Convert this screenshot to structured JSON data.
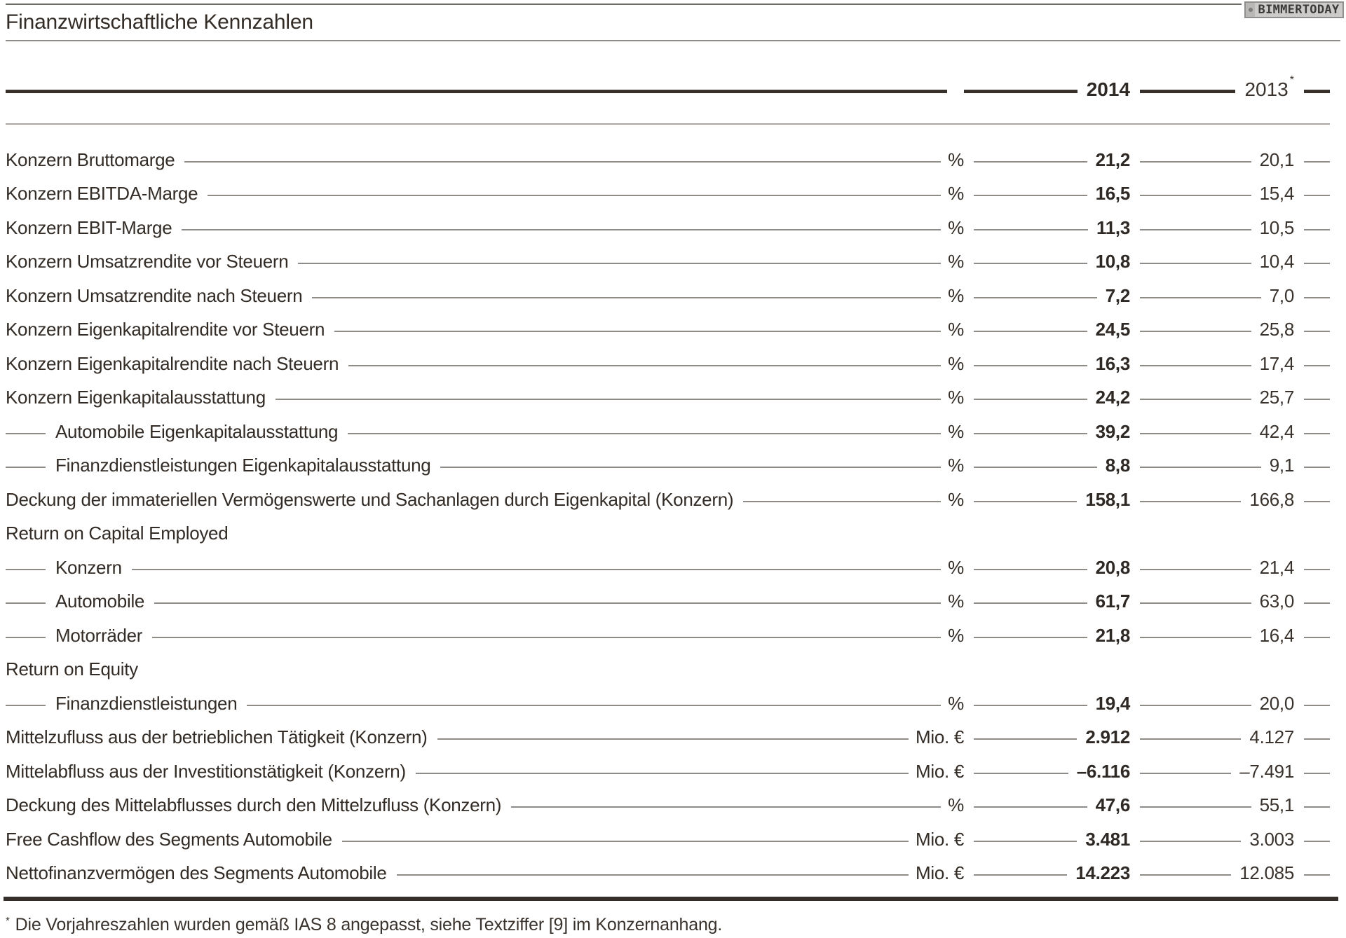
{
  "page": {
    "title": "Finanzwirtschaftliche Kennzahlen",
    "watermark": "BIMMERTODAY"
  },
  "columns": {
    "y2014": "2014",
    "y2013": "2013",
    "y2013_note": "*"
  },
  "table": {
    "rows": [
      {
        "label": "Konzern Bruttomarge",
        "unit": "%",
        "y2014": "21,2",
        "y2013": "20,1"
      },
      {
        "label": "Konzern EBITDA-Marge",
        "unit": "%",
        "y2014": "16,5",
        "y2013": "15,4"
      },
      {
        "label": "Konzern EBIT-Marge",
        "unit": "%",
        "y2014": "11,3",
        "y2013": "10,5"
      },
      {
        "label": "Konzern Umsatzrendite vor Steuern",
        "unit": "%",
        "y2014": "10,8",
        "y2013": "10,4"
      },
      {
        "label": "Konzern Umsatzrendite nach Steuern",
        "unit": "%",
        "y2014": "7,2",
        "y2013": "7,0"
      },
      {
        "label": "Konzern Eigenkapitalrendite vor Steuern",
        "unit": "%",
        "y2014": "24,5",
        "y2013": "25,8"
      },
      {
        "label": "Konzern Eigenkapitalrendite nach Steuern",
        "unit": "%",
        "y2014": "16,3",
        "y2013": "17,4"
      },
      {
        "label": "Konzern Eigenkapitalausstattung",
        "unit": "%",
        "y2014": "24,2",
        "y2013": "25,7"
      },
      {
        "label": "Automobile Eigenkapitalausstattung",
        "unit": "%",
        "y2014": "39,2",
        "y2013": "42,4",
        "indent": true
      },
      {
        "label": "Finanzdienstleistungen Eigenkapitalausstattung",
        "unit": "%",
        "y2014": "8,8",
        "y2013": "9,1",
        "indent": true
      },
      {
        "label": "Deckung der immateriellen Vermögenswerte und Sachanlagen durch Eigenkapital (Konzern)",
        "unit": "%",
        "y2014": "158,1",
        "y2013": "166,8"
      },
      {
        "label": "Return on Capital Employed",
        "section": true
      },
      {
        "label": "Konzern",
        "unit": "%",
        "y2014": "20,8",
        "y2013": "21,4",
        "indent": true
      },
      {
        "label": "Automobile",
        "unit": "%",
        "y2014": "61,7",
        "y2013": "63,0",
        "indent": true
      },
      {
        "label": "Motorräder",
        "unit": "%",
        "y2014": "21,8",
        "y2013": "16,4",
        "indent": true
      },
      {
        "label": "Return on Equity",
        "section": true
      },
      {
        "label": "Finanzdienstleistungen",
        "unit": "%",
        "y2014": "19,4",
        "y2013": "20,0",
        "indent": true
      },
      {
        "label": "Mittelzufluss aus der betrieblichen Tätigkeit (Konzern)",
        "unit": "Mio. €",
        "y2014": "2.912",
        "y2013": "4.127"
      },
      {
        "label": "Mittelabfluss aus der Investitionstätigkeit (Konzern)",
        "unit": "Mio. €",
        "y2014": "–6.116",
        "y2013": "–7.491"
      },
      {
        "label": "Deckung des Mittelabflusses durch den Mittelzufluss (Konzern)",
        "unit": "%",
        "y2014": "47,6",
        "y2013": "55,1"
      },
      {
        "label": "Free Cashflow des Segments Automobile",
        "unit": "Mio. €",
        "y2014": "3.481",
        "y2013": "3.003"
      },
      {
        "label": "Nettofinanzvermögen des Segments Automobile",
        "unit": "Mio. €",
        "y2014": "14.223",
        "y2013": "12.085"
      }
    ]
  },
  "footnote": {
    "marker": "*",
    "text": "Die Vorjahreszahlen wurden gemäß IAS 8 angepasst, siehe Textziffer [9] im Konzernanhang."
  },
  "colors": {
    "text": "#332c26",
    "bold_value": "#2f2925",
    "leader_line": "#8f8b87",
    "rule_dark": "#38302a",
    "rule_light": "#aaa7a4",
    "logo_background": "#cccbc9",
    "logo_frame": "#8f8e8c",
    "logo_text": "#3c3b39"
  }
}
